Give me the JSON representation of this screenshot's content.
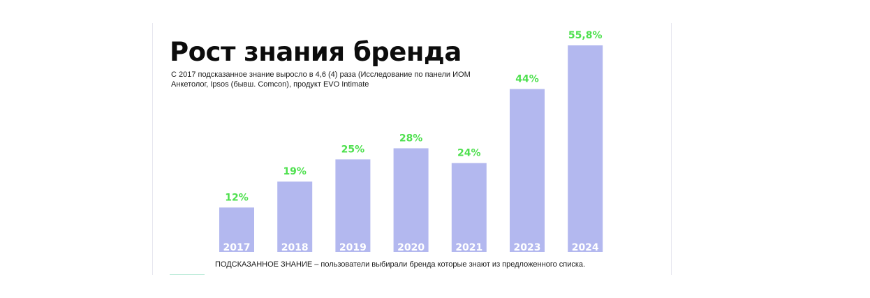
{
  "slide": {
    "title": "Рост знания бренда",
    "subtitle": "С 2017 подсказанное знание выросло в 4,6 (4) раза (Исследование по панели ИОМ Анкетолог, Ipsos (бывш. Comcon), продукт EVO Intimate",
    "footnote": "ПОДСКАЗАННОЕ ЗНАНИЕ – пользователи выбирали бренда которые знают из предложенного списка."
  },
  "chart_data": {
    "type": "bar",
    "categories": [
      "2017",
      "2018",
      "2019",
      "2020",
      "2021",
      "2023",
      "2024"
    ],
    "values": [
      12,
      19,
      25,
      28,
      24,
      44,
      55.8
    ],
    "value_labels": [
      "12%",
      "19%",
      "25%",
      "28%",
      "24%",
      "44%",
      "55,8%"
    ],
    "title": "",
    "xlabel": "",
    "ylabel": "",
    "ylim": [
      0,
      60
    ],
    "grid": false,
    "legend": "none",
    "colors": {
      "bar": "#b3b8ef",
      "value_label": "#4ee04e",
      "category_label": "#ffffff"
    }
  }
}
